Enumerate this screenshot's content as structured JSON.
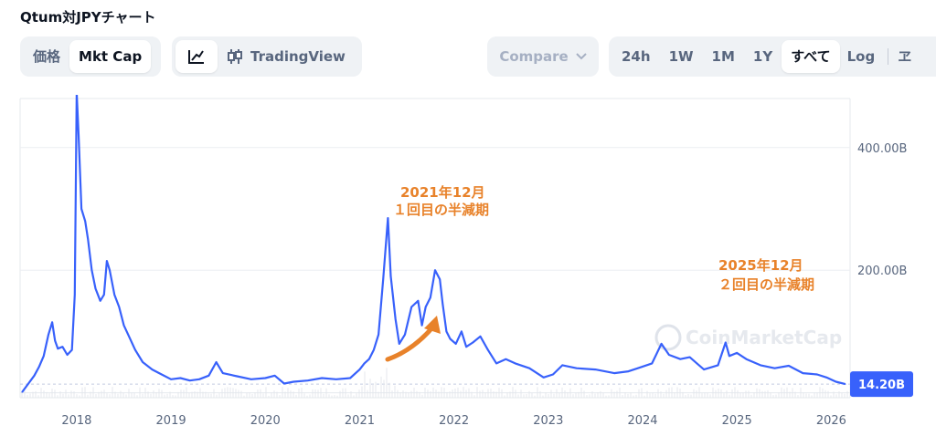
{
  "page": {
    "title": "Qtum対JPYチャート"
  },
  "toolbar": {
    "price_tab": "価格",
    "mktcap_tab": "Mkt Cap",
    "tradingview_label": "TradingView",
    "compare_label": "Compare",
    "ranges": [
      "24h",
      "1W",
      "1M",
      "1Y",
      "すべて"
    ],
    "log_label": "Log",
    "overflow_label": "ヱ"
  },
  "watermark": "CoinMarketCap",
  "colors": {
    "line": "#3861fb",
    "accent": "#3861fb",
    "annotation": "#e8822a"
  },
  "chart_data": {
    "type": "line",
    "title": "",
    "xlabel": "",
    "ylabel": "",
    "x_ticks": [
      "2018",
      "2019",
      "2020",
      "2021",
      "2022",
      "2023",
      "2024",
      "2025",
      "2026"
    ],
    "y_ticks": [
      "200.00B",
      "400.00B"
    ],
    "y_tick_values": [
      200,
      400
    ],
    "ylim": [
      -8,
      480
    ],
    "xlim": [
      2017.4,
      2026.2
    ],
    "current_value_label": "14.20B",
    "grid": "horizontal",
    "series": [
      {
        "values": [
          [
            2017.42,
            1
          ],
          [
            2017.55,
            28
          ],
          [
            2017.6,
            42
          ],
          [
            2017.65,
            60
          ],
          [
            2017.7,
            95
          ],
          [
            2017.74,
            115
          ],
          [
            2017.77,
            85
          ],
          [
            2017.8,
            72
          ],
          [
            2017.85,
            75
          ],
          [
            2017.9,
            62
          ],
          [
            2017.95,
            70
          ],
          [
            2017.98,
            160
          ],
          [
            2018.0,
            490
          ],
          [
            2018.02,
            420
          ],
          [
            2018.05,
            300
          ],
          [
            2018.09,
            280
          ],
          [
            2018.12,
            250
          ],
          [
            2018.16,
            200
          ],
          [
            2018.2,
            170
          ],
          [
            2018.25,
            150
          ],
          [
            2018.29,
            160
          ],
          [
            2018.32,
            215
          ],
          [
            2018.35,
            200
          ],
          [
            2018.4,
            160
          ],
          [
            2018.45,
            140
          ],
          [
            2018.5,
            110
          ],
          [
            2018.56,
            90
          ],
          [
            2018.62,
            70
          ],
          [
            2018.7,
            50
          ],
          [
            2018.8,
            38
          ],
          [
            2018.9,
            30
          ],
          [
            2019.0,
            22
          ],
          [
            2019.1,
            24
          ],
          [
            2019.2,
            20
          ],
          [
            2019.3,
            22
          ],
          [
            2019.4,
            28
          ],
          [
            2019.48,
            50
          ],
          [
            2019.55,
            32
          ],
          [
            2019.7,
            27
          ],
          [
            2019.85,
            22
          ],
          [
            2020.0,
            24
          ],
          [
            2020.1,
            28
          ],
          [
            2020.2,
            15
          ],
          [
            2020.3,
            18
          ],
          [
            2020.45,
            20
          ],
          [
            2020.6,
            24
          ],
          [
            2020.75,
            22
          ],
          [
            2020.9,
            24
          ],
          [
            2021.0,
            38
          ],
          [
            2021.05,
            48
          ],
          [
            2021.1,
            55
          ],
          [
            2021.15,
            70
          ],
          [
            2021.2,
            95
          ],
          [
            2021.25,
            185
          ],
          [
            2021.3,
            285
          ],
          [
            2021.33,
            190
          ],
          [
            2021.38,
            120
          ],
          [
            2021.42,
            80
          ],
          [
            2021.48,
            95
          ],
          [
            2021.55,
            140
          ],
          [
            2021.62,
            150
          ],
          [
            2021.66,
            110
          ],
          [
            2021.7,
            140
          ],
          [
            2021.75,
            155
          ],
          [
            2021.8,
            200
          ],
          [
            2021.85,
            185
          ],
          [
            2021.88,
            145
          ],
          [
            2021.92,
            100
          ],
          [
            2021.96,
            88
          ],
          [
            2022.02,
            80
          ],
          [
            2022.08,
            100
          ],
          [
            2022.13,
            75
          ],
          [
            2022.2,
            82
          ],
          [
            2022.28,
            92
          ],
          [
            2022.36,
            70
          ],
          [
            2022.45,
            48
          ],
          [
            2022.55,
            55
          ],
          [
            2022.65,
            48
          ],
          [
            2022.8,
            40
          ],
          [
            2022.95,
            25
          ],
          [
            2023.05,
            30
          ],
          [
            2023.15,
            45
          ],
          [
            2023.3,
            40
          ],
          [
            2023.5,
            38
          ],
          [
            2023.7,
            32
          ],
          [
            2023.85,
            35
          ],
          [
            2023.95,
            40
          ],
          [
            2024.1,
            48
          ],
          [
            2024.2,
            80
          ],
          [
            2024.28,
            62
          ],
          [
            2024.4,
            55
          ],
          [
            2024.5,
            58
          ],
          [
            2024.65,
            38
          ],
          [
            2024.8,
            45
          ],
          [
            2024.88,
            82
          ],
          [
            2024.92,
            60
          ],
          [
            2025.0,
            65
          ],
          [
            2025.1,
            55
          ],
          [
            2025.25,
            45
          ],
          [
            2025.4,
            40
          ],
          [
            2025.55,
            44
          ],
          [
            2025.7,
            32
          ],
          [
            2025.85,
            30
          ],
          [
            2025.95,
            25
          ],
          [
            2026.05,
            18
          ],
          [
            2026.15,
            14.2
          ]
        ]
      }
    ],
    "annotations": [
      {
        "lines": [
          "2021年12月",
          "１回目の半減期"
        ]
      },
      {
        "lines": [
          "2025年12月",
          "２回目の半減期"
        ]
      }
    ]
  }
}
